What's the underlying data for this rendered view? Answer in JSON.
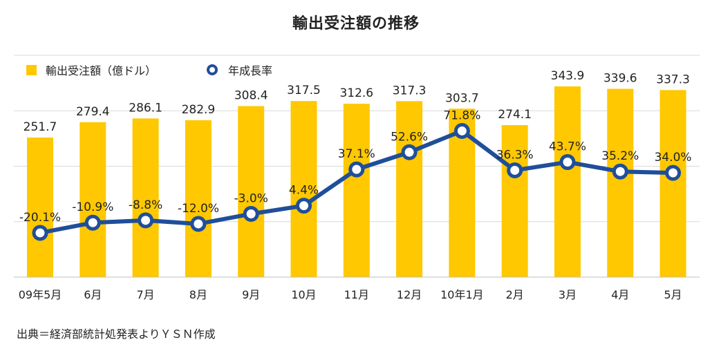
{
  "colors": {
    "bar": "#FFC800",
    "line": "#1F4E9A",
    "marker_fill": "#ffffff",
    "grid": "#D9D9D9",
    "axis": "#BFBFBF"
  },
  "chart_data": {
    "type": "bar",
    "title": "輸出受注額の推移",
    "categories": [
      "09年5月",
      "6月",
      "7月",
      "8月",
      "9月",
      "10月",
      "11月",
      "12月",
      "10年1月",
      "2月",
      "3月",
      "4月",
      "5月"
    ],
    "series": [
      {
        "name": "輸出受注額（億ドル）",
        "type": "bar",
        "axis": "left",
        "values": [
          251.7,
          279.4,
          286.1,
          282.9,
          308.4,
          317.5,
          312.6,
          317.3,
          303.7,
          274.1,
          343.9,
          339.6,
          337.3
        ],
        "labels": [
          "251.7",
          "279.4",
          "286.1",
          "282.9",
          "308.4",
          "317.5",
          "312.6",
          "317.3",
          "303.7",
          "274.1",
          "343.9",
          "339.6",
          "337.3"
        ]
      },
      {
        "name": "年成長率",
        "type": "line",
        "axis": "right",
        "values": [
          -20.1,
          -10.9,
          -8.8,
          -12.0,
          -3.0,
          4.4,
          37.1,
          52.6,
          71.8,
          36.3,
          43.7,
          35.2,
          34.0
        ],
        "labels": [
          "-20.1%",
          "-10.9%",
          "-8.8%",
          "-12.0%",
          "-3.0%",
          "4.4%",
          "37.1%",
          "52.6%",
          "71.8%",
          "36.3%",
          "43.7%",
          "35.2%",
          "34.0%"
        ]
      }
    ],
    "ylim_left": [
      0,
      400
    ],
    "ylim_right": [
      -60,
      140
    ],
    "grid": true,
    "legend": "top-left"
  },
  "source": "出典＝経済部統計処発表よりＹＳＮ作成"
}
